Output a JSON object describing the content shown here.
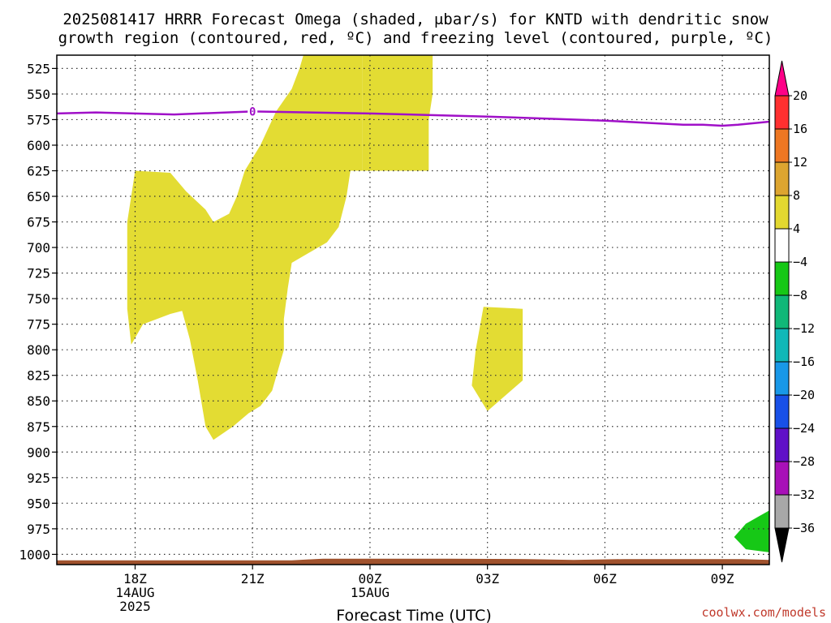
{
  "chart_data": {
    "type": "contour",
    "title_lines": [
      "2025081417 HRRR Forecast Omega (shaded, μbar/s) for KNTD with dendritic snow",
      "growth region (contoured, red, ºC) and freezing level (contoured, purple, ºC)"
    ],
    "xlabel": "Forecast Time (UTC)",
    "credit": "coolwx.com/models",
    "x_hours_range": [
      16.0,
      34.2
    ],
    "y_axis": {
      "reversed": true,
      "range": [
        1010,
        512
      ],
      "ticks": [
        525,
        550,
        575,
        600,
        625,
        650,
        675,
        700,
        725,
        750,
        775,
        800,
        825,
        850,
        875,
        900,
        925,
        950,
        975,
        1000
      ]
    },
    "x_ticks": [
      {
        "hour": 18,
        "lines": [
          "18Z",
          "14AUG",
          "2025"
        ]
      },
      {
        "hour": 21,
        "lines": [
          "21Z"
        ]
      },
      {
        "hour": 24,
        "lines": [
          "00Z",
          "15AUG"
        ]
      },
      {
        "hour": 27,
        "lines": [
          "03Z"
        ]
      },
      {
        "hour": 30,
        "lines": [
          "06Z"
        ]
      },
      {
        "hour": 33,
        "lines": [
          "09Z"
        ]
      }
    ],
    "grid": true,
    "colorbar": {
      "position": "right",
      "levels": [
        "20",
        "16",
        "12",
        "8",
        "4",
        "−4",
        "−8",
        "−12",
        "−16",
        "−20",
        "−24",
        "−28",
        "−32",
        "−36"
      ],
      "colors": [
        "#ff0088",
        "#ff3030",
        "#ee7722",
        "#dda530",
        "#e3d830",
        "#ffffff",
        "#16c816",
        "#10b878",
        "#10b8b8",
        "#1898e8",
        "#1850e8",
        "#6010c8",
        "#a810b8",
        "#a8a8a8",
        "#000000"
      ]
    },
    "omega_regions": [
      {
        "name": "positive-omega-4-8",
        "color": "#e3dc33",
        "points": [
          [
            18.0,
            625
          ],
          [
            18.9,
            627
          ],
          [
            19.3,
            645
          ],
          [
            19.8,
            663
          ],
          [
            20.0,
            675
          ],
          [
            20.4,
            667
          ],
          [
            20.6,
            650
          ],
          [
            20.8,
            625
          ],
          [
            21.2,
            600
          ],
          [
            21.6,
            567
          ],
          [
            22.0,
            545
          ],
          [
            22.2,
            525
          ],
          [
            22.3,
            512
          ],
          [
            23.8,
            512
          ],
          [
            23.8,
            625
          ],
          [
            23.5,
            625
          ],
          [
            23.4,
            650
          ],
          [
            23.2,
            680
          ],
          [
            22.9,
            695
          ],
          [
            22.0,
            715
          ],
          [
            21.9,
            740
          ],
          [
            21.8,
            770
          ],
          [
            21.8,
            800
          ],
          [
            21.5,
            840
          ],
          [
            21.2,
            855
          ],
          [
            20.9,
            862
          ],
          [
            20.5,
            875
          ],
          [
            20.0,
            888
          ],
          [
            19.8,
            875
          ],
          [
            19.6,
            830
          ],
          [
            19.4,
            790
          ],
          [
            19.2,
            762
          ],
          [
            18.9,
            765
          ],
          [
            18.2,
            775
          ],
          [
            17.9,
            795
          ],
          [
            17.8,
            760
          ],
          [
            17.8,
            675
          ],
          [
            17.9,
            650
          ]
        ]
      },
      {
        "name": "positive-omega-4-8",
        "color": "#e3dc33",
        "points": [
          [
            23.8,
            512
          ],
          [
            25.6,
            512
          ],
          [
            25.6,
            550
          ],
          [
            25.5,
            575
          ],
          [
            25.5,
            625
          ],
          [
            23.8,
            625
          ]
        ]
      },
      {
        "name": "positive-omega-4-8",
        "color": "#e3dc33",
        "points": [
          [
            26.9,
            758
          ],
          [
            27.9,
            760
          ],
          [
            27.9,
            830
          ],
          [
            27.0,
            860
          ],
          [
            26.6,
            835
          ],
          [
            26.7,
            800
          ]
        ]
      },
      {
        "name": "negative-omega-minus4-minus8",
        "color": "#16c816",
        "points": [
          [
            34.2,
            957
          ],
          [
            33.6,
            970
          ],
          [
            33.3,
            983
          ],
          [
            33.6,
            995
          ],
          [
            34.2,
            998
          ]
        ]
      }
    ],
    "freezing_level": {
      "color": "#a010c8",
      "label": "0",
      "label_hour": 21,
      "points": [
        [
          16.0,
          569
        ],
        [
          17.0,
          568
        ],
        [
          19.0,
          570
        ],
        [
          21.0,
          567
        ],
        [
          24.0,
          569
        ],
        [
          27.0,
          572
        ],
        [
          30.0,
          576
        ],
        [
          31.0,
          578
        ],
        [
          32.0,
          580
        ],
        [
          32.5,
          580
        ],
        [
          33.0,
          581
        ],
        [
          33.4,
          580
        ],
        [
          34.2,
          577
        ]
      ]
    },
    "terrain": {
      "color": "#a0522d",
      "top_pressure": 1005
    }
  }
}
